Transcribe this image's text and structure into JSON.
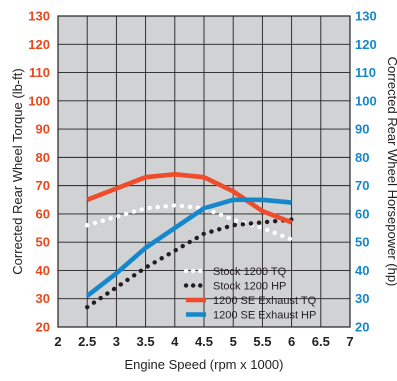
{
  "chart_data": {
    "type": "line",
    "xlabel": "Engine Speed (rpm x 1000)",
    "ylabel_left": "Corrected Rear Wheel Torque (lb-ft)",
    "ylabel_right": "Corrected Rear Wheel Horsepower (hp)",
    "xlim": [
      2,
      7
    ],
    "ylim": [
      20,
      130
    ],
    "x_ticks": [
      "2",
      "2.5",
      "3",
      "3.5",
      "4",
      "4.5",
      "5",
      "5.5",
      "6",
      "6.5",
      "7"
    ],
    "y_ticks_left": [
      "20",
      "30",
      "40",
      "50",
      "60",
      "70",
      "80",
      "90",
      "100",
      "110",
      "120",
      "130"
    ],
    "y_ticks_right": [
      "20",
      "30",
      "40",
      "50",
      "60",
      "70",
      "80",
      "90",
      "100",
      "110",
      "120",
      "130"
    ],
    "grid": true,
    "legend_position": "bottom-right",
    "colors": {
      "left_axis": "#e8481c",
      "right_axis": "#1588cc",
      "grid": "#231f20",
      "plot_background": "#d1d2d4"
    },
    "series": [
      {
        "name": "Stock 1200 TQ",
        "color": "#ffffff",
        "style": "dotted",
        "x": [
          2.5,
          3,
          3.5,
          4,
          4.5,
          5,
          5.5,
          6
        ],
        "y": [
          56,
          59,
          62,
          63,
          62,
          58,
          55,
          51
        ]
      },
      {
        "name": "Stock 1200 HP",
        "color": "#231f20",
        "style": "dotted",
        "x": [
          2.5,
          3,
          3.5,
          4,
          4.5,
          5,
          5.5,
          6
        ],
        "y": [
          27,
          34,
          41,
          47,
          53,
          56,
          57,
          58
        ]
      },
      {
        "name": "1200 SE Exhaust TQ",
        "color": "#ef4c2b",
        "style": "solid",
        "x": [
          2.5,
          3,
          3.5,
          4,
          4.5,
          5,
          5.5,
          6
        ],
        "y": [
          65,
          69,
          73,
          74,
          73,
          68,
          61,
          57
        ]
      },
      {
        "name": "1200 SE Exhaust HP",
        "color": "#1588cc",
        "style": "solid",
        "x": [
          2.5,
          3,
          3.5,
          4,
          4.5,
          5,
          5.5,
          6
        ],
        "y": [
          31,
          39,
          48,
          55,
          62,
          65,
          65,
          64
        ]
      }
    ]
  }
}
